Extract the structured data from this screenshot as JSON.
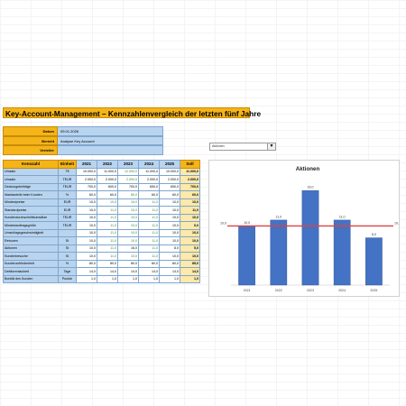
{
  "title": "Key-Account-Management – Kennzahlenvergleich der letzten fünf Jahre",
  "info": [
    {
      "label": "Datum",
      "value": "09.01.2026"
    },
    {
      "label": "Bericht",
      "value": "Analyse Key Account"
    },
    {
      "label": "Verteiler",
      "value": ""
    }
  ],
  "dropdown": {
    "value": "Aktionen",
    "icon": "chevron-down-icon"
  },
  "table": {
    "headers": [
      "Kennzahl",
      "Einheit",
      "2021",
      "2022",
      "2023",
      "2024",
      "2025",
      "Soll"
    ],
    "rows": [
      {
        "name": "Umsatz",
        "unit": "T€",
        "values": [
          "10.000,0",
          "11.000,0",
          "12.000,0",
          "11.000,0",
          "10.000,0"
        ],
        "green": [
          false,
          false,
          true,
          false,
          false
        ],
        "soll": "11.000,0"
      },
      {
        "name": "Umsatz",
        "unit": "TEUR",
        "values": [
          "2.000,0",
          "2.000,0",
          "2.000,0",
          "2.000,0",
          "2.000,0"
        ],
        "green": [
          false,
          false,
          true,
          false,
          false
        ],
        "soll": "2.000,0"
      },
      {
        "name": "Deckungsbeiträge",
        "unit": "TEUR",
        "values": [
          "700,0",
          "600,0",
          "700,0",
          "650,0",
          "650,0"
        ],
        "green": [
          false,
          false,
          false,
          false,
          false
        ],
        "soll": "700,0"
      },
      {
        "name": "Marktanteile beim Kunden",
        "unit": "%",
        "values": [
          "60,0",
          "60,0",
          "80,0",
          "60,0",
          "60,0"
        ],
        "green": [
          false,
          false,
          true,
          false,
          false
        ],
        "soll": "60,0"
      },
      {
        "name": "Mindestpreise",
        "unit": "EUR",
        "values": [
          "10,0",
          "10,0",
          "10,0",
          "11,0",
          "10,0"
        ],
        "green": [
          false,
          true,
          true,
          true,
          false
        ],
        "soll": "10,0"
      },
      {
        "name": "Standardpreise",
        "unit": "EUR",
        "values": [
          "10,0",
          "11,0",
          "10,0",
          "11,0",
          "10,0"
        ],
        "green": [
          false,
          true,
          true,
          true,
          false
        ],
        "soll": "11,0"
      },
      {
        "name": "Kundendurchschnittsumsätze",
        "unit": "TEUR",
        "values": [
          "10,0",
          "11,0",
          "10,0",
          "11,0",
          "10,0"
        ],
        "green": [
          false,
          true,
          true,
          true,
          false
        ],
        "soll": "10,0"
      },
      {
        "name": "Mindestauftragsgröße",
        "unit": "TEUR",
        "values": [
          "10,0",
          "11,0",
          "10,0",
          "11,0",
          "10,0"
        ],
        "green": [
          false,
          true,
          true,
          true,
          false
        ],
        "soll": "9,0"
      },
      {
        "name": "Umschlagsgeschwindigkeit",
        "unit": "",
        "values": [
          "10,0",
          "11,0",
          "10,0",
          "11,0",
          "10,0"
        ],
        "green": [
          false,
          true,
          true,
          true,
          false
        ],
        "soll": "10,0"
      },
      {
        "name": "Retouren",
        "unit": "St",
        "values": [
          "10,0",
          "11,0",
          "10,0",
          "11,0",
          "10,0"
        ],
        "green": [
          false,
          true,
          true,
          true,
          false
        ],
        "soll": "10,0"
      },
      {
        "name": "Aktionen",
        "unit": "St",
        "values": [
          "10,0",
          "11,0",
          "16,0",
          "11,0",
          "8,0"
        ],
        "green": [
          false,
          true,
          false,
          true,
          false
        ],
        "soll": "5,0"
      },
      {
        "name": "Kundenbesuche",
        "unit": "St",
        "values": [
          "10,0",
          "11,0",
          "10,0",
          "11,0",
          "10,0"
        ],
        "green": [
          false,
          true,
          true,
          true,
          false
        ],
        "soll": "10,0"
      },
      {
        "name": "Kundenzufriedenheit",
        "unit": "%",
        "values": [
          "80,0",
          "80,0",
          "80,0",
          "80,0",
          "80,0"
        ],
        "green": [
          false,
          false,
          false,
          false,
          false
        ],
        "soll": "85,0"
      },
      {
        "name": "Debitorenlaufzeit",
        "unit": "Tage",
        "values": [
          "14,0",
          "14,0",
          "14,0",
          "14,0",
          "14,0"
        ],
        "green": [
          false,
          false,
          false,
          false,
          false
        ],
        "soll": "14,0"
      },
      {
        "name": "Bonität des Kunden",
        "unit": "Punkte",
        "values": [
          "1,0",
          "1,0",
          "1,0",
          "1,0",
          "1,0"
        ],
        "green": [
          false,
          false,
          false,
          false,
          false
        ],
        "soll": "1,0"
      }
    ]
  },
  "chart_data": {
    "type": "bar",
    "title": "Aktionen",
    "categories": [
      "2021",
      "2022",
      "2023",
      "2024",
      "2025"
    ],
    "values": [
      10.0,
      11.0,
      16.0,
      11.0,
      8.0
    ],
    "value_labels": [
      "10,0",
      "11,0",
      "16,0",
      "11,0",
      "8,0"
    ],
    "reference_line": {
      "value": 10.0,
      "label_left": "10,0",
      "label_right": "10,0"
    },
    "ylim": [
      0,
      18
    ],
    "bar_color": "#4472c4",
    "line_color": "#e04040",
    "grid": false,
    "legend": "none"
  }
}
